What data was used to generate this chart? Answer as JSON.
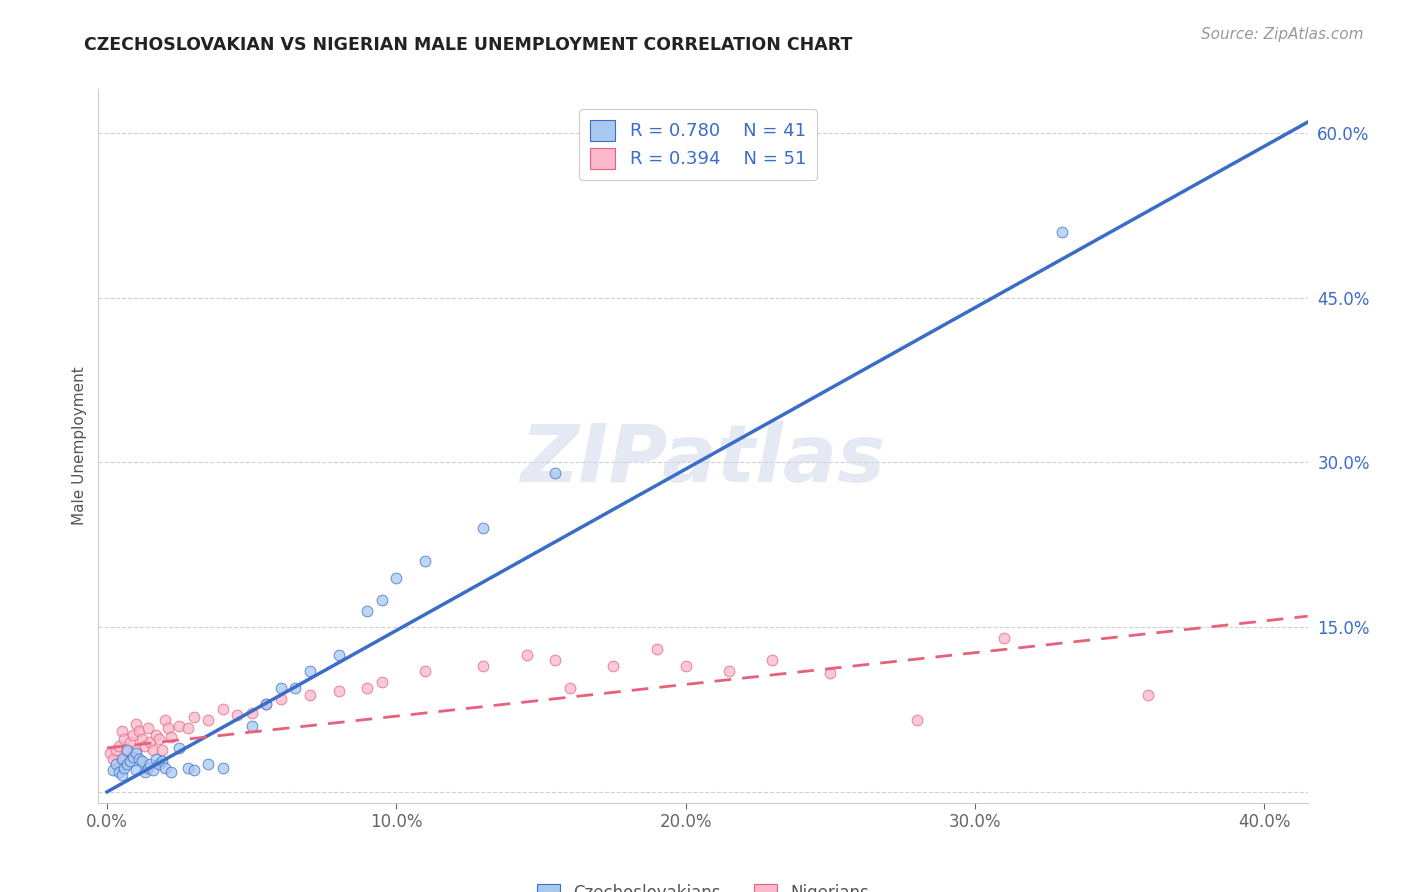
{
  "title": "CZECHOSLOVAKIAN VS NIGERIAN MALE UNEMPLOYMENT CORRELATION CHART",
  "source": "Source: ZipAtlas.com",
  "ylabel": "Male Unemployment",
  "xlabel_ticks": [
    "0.0%",
    "10.0%",
    "20.0%",
    "30.0%",
    "40.0%"
  ],
  "xlabel_vals": [
    0.0,
    0.1,
    0.2,
    0.3,
    0.4
  ],
  "ylabel_ticks": [
    "",
    "15.0%",
    "30.0%",
    "45.0%",
    "60.0%"
  ],
  "ylabel_vals": [
    0.0,
    0.15,
    0.3,
    0.45,
    0.6
  ],
  "xlim": [
    -0.003,
    0.415
  ],
  "ylim": [
    -0.01,
    0.64
  ],
  "legend_r1": "R = 0.780",
  "legend_n1": "N = 41",
  "legend_r2": "R = 0.394",
  "legend_n2": "N = 51",
  "watermark": "ZIPatlas",
  "czech_color": "#A8C8F0",
  "nigerian_color": "#F9B8CC",
  "czech_line_color": "#3B6DC8",
  "nigerian_line_color": "#E8607A",
  "czech_scatter_x": [
    0.002,
    0.003,
    0.004,
    0.005,
    0.005,
    0.006,
    0.007,
    0.007,
    0.008,
    0.009,
    0.01,
    0.01,
    0.011,
    0.012,
    0.013,
    0.014,
    0.015,
    0.016,
    0.017,
    0.018,
    0.019,
    0.02,
    0.022,
    0.025,
    0.028,
    0.03,
    0.035,
    0.04,
    0.05,
    0.055,
    0.06,
    0.065,
    0.07,
    0.08,
    0.09,
    0.095,
    0.1,
    0.11,
    0.13,
    0.155,
    0.33
  ],
  "czech_scatter_y": [
    0.02,
    0.025,
    0.018,
    0.03,
    0.015,
    0.022,
    0.025,
    0.038,
    0.028,
    0.032,
    0.02,
    0.035,
    0.03,
    0.028,
    0.018,
    0.022,
    0.025,
    0.02,
    0.03,
    0.025,
    0.028,
    0.022,
    0.018,
    0.04,
    0.022,
    0.02,
    0.025,
    0.022,
    0.06,
    0.08,
    0.095,
    0.095,
    0.11,
    0.125,
    0.165,
    0.175,
    0.195,
    0.21,
    0.24,
    0.29,
    0.51
  ],
  "nigerian_scatter_x": [
    0.001,
    0.002,
    0.003,
    0.004,
    0.005,
    0.005,
    0.006,
    0.007,
    0.008,
    0.009,
    0.01,
    0.01,
    0.011,
    0.012,
    0.013,
    0.014,
    0.015,
    0.016,
    0.017,
    0.018,
    0.019,
    0.02,
    0.021,
    0.022,
    0.025,
    0.028,
    0.03,
    0.035,
    0.04,
    0.045,
    0.05,
    0.055,
    0.06,
    0.07,
    0.08,
    0.09,
    0.095,
    0.11,
    0.13,
    0.145,
    0.155,
    0.16,
    0.175,
    0.19,
    0.2,
    0.215,
    0.23,
    0.25,
    0.28,
    0.31,
    0.36
  ],
  "nigerian_scatter_y": [
    0.035,
    0.03,
    0.038,
    0.042,
    0.028,
    0.055,
    0.048,
    0.038,
    0.045,
    0.052,
    0.038,
    0.062,
    0.055,
    0.048,
    0.042,
    0.058,
    0.045,
    0.038,
    0.052,
    0.048,
    0.038,
    0.065,
    0.058,
    0.05,
    0.06,
    0.058,
    0.068,
    0.065,
    0.075,
    0.07,
    0.072,
    0.08,
    0.085,
    0.088,
    0.092,
    0.095,
    0.1,
    0.11,
    0.115,
    0.125,
    0.12,
    0.095,
    0.115,
    0.13,
    0.115,
    0.11,
    0.12,
    0.108,
    0.065,
    0.14,
    0.088
  ],
  "czech_line_x": [
    0.0,
    0.415
  ],
  "czech_line_y": [
    0.0,
    0.61
  ],
  "nigerian_line_x": [
    0.0,
    0.415
  ],
  "nigerian_line_y": [
    0.04,
    0.16
  ]
}
